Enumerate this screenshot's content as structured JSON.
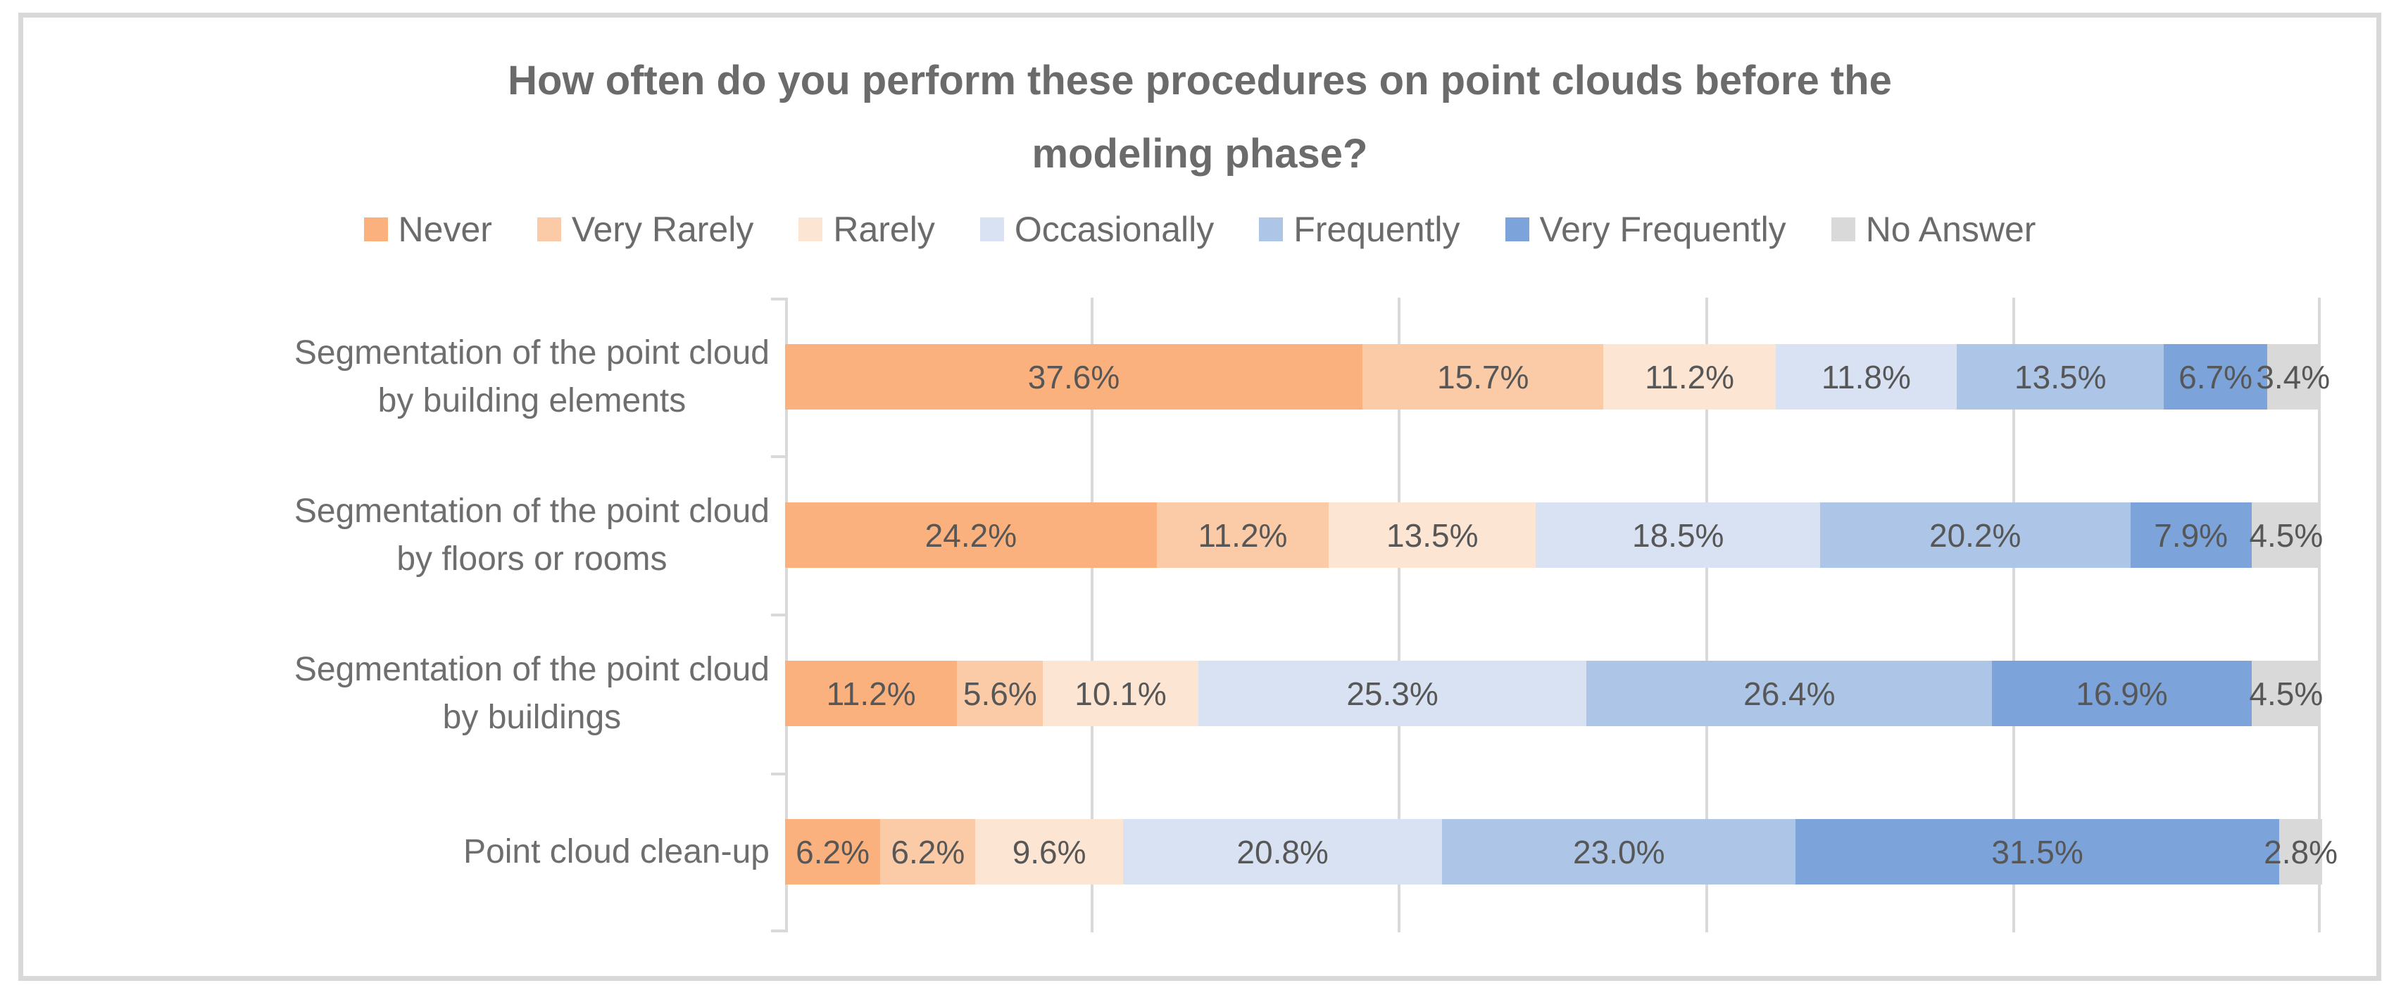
{
  "title": {
    "lines": [
      "How often do you perform these procedures on point clouds before the",
      "modeling phase?"
    ]
  },
  "chart_data": {
    "type": "bar",
    "orientation": "horizontal",
    "stacked": true,
    "unit": "%",
    "title": "How often do you perform these procedures on point clouds before the modeling phase?",
    "xlabel": "",
    "ylabel": "",
    "xlim": [
      0,
      100
    ],
    "gridline_interval_percent": 20,
    "axis_tick_labels_shown": false,
    "legend_position": "top",
    "grid": true,
    "categories": [
      "Segmentation of the point cloud by building elements",
      "Segmentation of the point cloud by floors or rooms",
      "Segmentation of the point cloud by buildings",
      "Point cloud clean-up"
    ],
    "series": [
      {
        "name": "Never",
        "color": "#FBB17D",
        "values": [
          37.6,
          24.2,
          11.2,
          6.2
        ]
      },
      {
        "name": "Very Rarely",
        "color": "#FBCBA7",
        "values": [
          15.7,
          11.2,
          5.6,
          6.2
        ]
      },
      {
        "name": "Rarely",
        "color": "#FDE5D3",
        "values": [
          11.2,
          13.5,
          10.1,
          9.6
        ]
      },
      {
        "name": "Occasionally",
        "color": "#D9E2F2",
        "values": [
          11.8,
          18.5,
          25.3,
          20.8
        ]
      },
      {
        "name": "Frequently",
        "color": "#ADC5E7",
        "values": [
          13.5,
          20.2,
          26.4,
          23.0
        ]
      },
      {
        "name": "Very Frequently",
        "color": "#7CA4DB",
        "values": [
          6.7,
          7.9,
          16.9,
          31.5
        ]
      },
      {
        "name": "No Answer",
        "color": "#D9D9D9",
        "values": [
          3.4,
          4.5,
          4.5,
          2.8
        ]
      }
    ]
  },
  "style": {
    "frame_border_color": "#D8D8D8",
    "gridline_color": "#D9D9D9",
    "title_color": "#6B6B6B",
    "category_label_color": "#6E6E6E",
    "value_label_color": "#575757"
  }
}
